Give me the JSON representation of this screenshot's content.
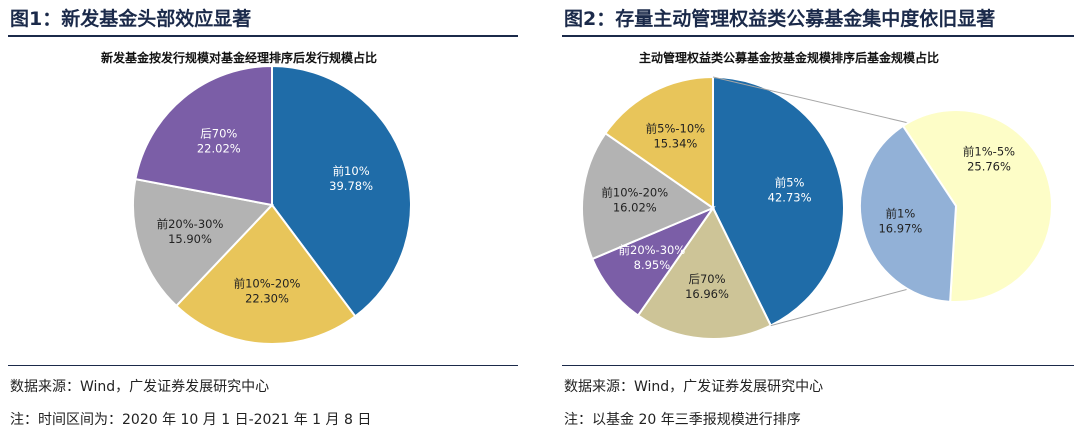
{
  "figures": [
    {
      "heading": "图1：新发基金头部效应显著",
      "source": "数据来源：Wind，广发证券发展研究中心",
      "note": "注：时间区间为：2020 年 10 月 1 日-2021 年 1 月 8 日"
    },
    {
      "heading": "图2：存量主动管理权益类公募基金集中度依旧显著",
      "source": "数据来源：Wind，广发证券发展研究中心",
      "note": "注：以基金 20 年三季报规模进行排序"
    }
  ],
  "chart_data": [
    {
      "type": "pie",
      "title": "新发基金按发行规模对基金经理排序后发行规模占比",
      "labels": [
        "前10%",
        "前10%-20%",
        "前20%-30%",
        "后70%"
      ],
      "values": [
        39.78,
        22.3,
        15.9,
        22.02
      ],
      "value_labels": [
        "39.78%",
        "22.30%",
        "15.90%",
        "22.02%"
      ],
      "colors": [
        "#1f6ca8",
        "#e8c55a",
        "#b3b3b3",
        "#7b5ea7"
      ],
      "legend": "none"
    },
    {
      "type": "pie",
      "title": "主动管理权益类公募基金按基金规模排序后基金规模占比",
      "labels": [
        "前5%",
        "后70%",
        "前20%-30%",
        "前10%-20%",
        "前5%-10%"
      ],
      "values": [
        42.73,
        16.96,
        8.95,
        16.02,
        15.34
      ],
      "value_labels": [
        "42.73%",
        "16.96%",
        "8.95%",
        "16.02%",
        "15.34%"
      ],
      "colors": [
        "#1f6ca8",
        "#cdc497",
        "#7b5ea7",
        "#b3b3b3",
        "#e8c55a"
      ],
      "breakout": {
        "of": "前5%",
        "labels": [
          "前1%-5%",
          "前1%"
        ],
        "values": [
          25.76,
          16.97
        ],
        "value_labels": [
          "25.76%",
          "16.97%"
        ],
        "colors": [
          "#fdfdc7",
          "#92b1d7"
        ]
      },
      "legend": "none"
    }
  ]
}
